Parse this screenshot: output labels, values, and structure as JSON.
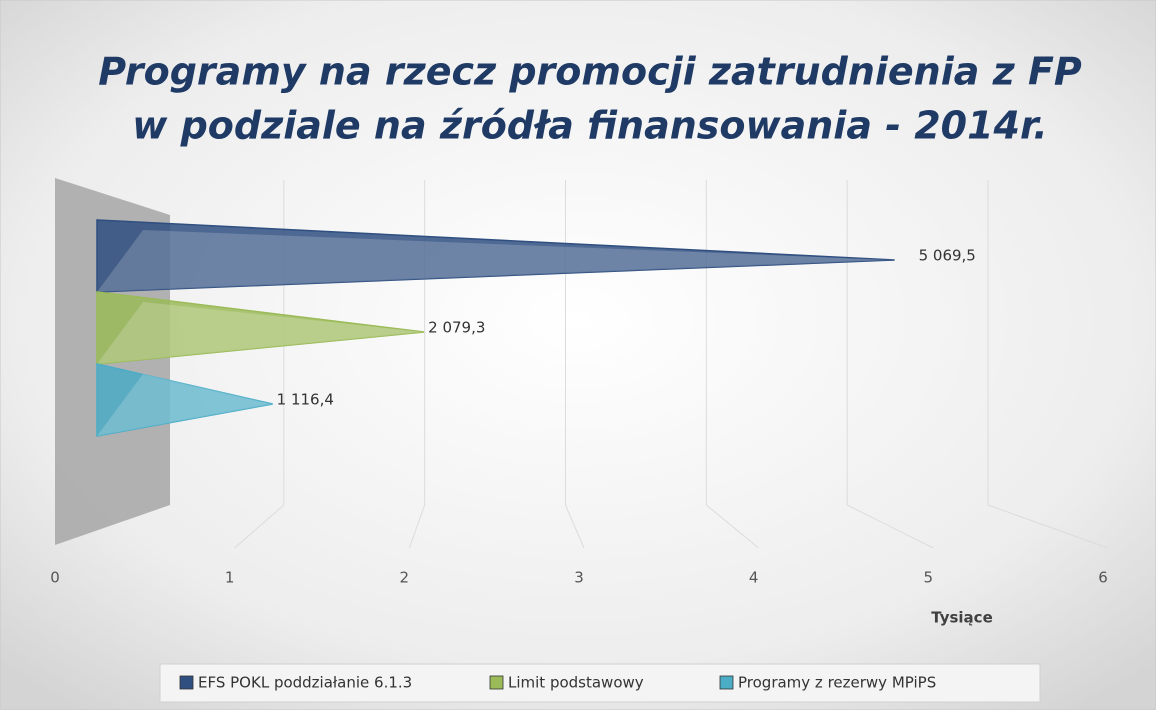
{
  "chart_data": {
    "type": "pyramid-bar",
    "title": [
      "Programy na rzecz promocji zatrudnienia z FP",
      "w podziale na źródła finansowania - 2014r."
    ],
    "categories": [
      null
    ],
    "series": [
      {
        "name": "EFS POKL poddziałanie 6.1.3",
        "color": "#2f4f80",
        "values": [
          5.0695
        ],
        "value_labels": [
          "5 069,5"
        ]
      },
      {
        "name": "Limit podstawowy",
        "color": "#9bbb59",
        "values": [
          2.0793
        ],
        "value_labels": [
          "2 079,3"
        ]
      },
      {
        "name": "Programy z rezerwy MPiPS",
        "color": "#4bacc6",
        "values": [
          1.1164
        ],
        "value_labels": [
          "1 116,4"
        ]
      }
    ],
    "xlim": [
      0,
      6
    ],
    "xticks": [
      0,
      1,
      2,
      3,
      4,
      5,
      6
    ],
    "xlabel": "Tysiące",
    "grid": true,
    "legend": "bottom"
  }
}
